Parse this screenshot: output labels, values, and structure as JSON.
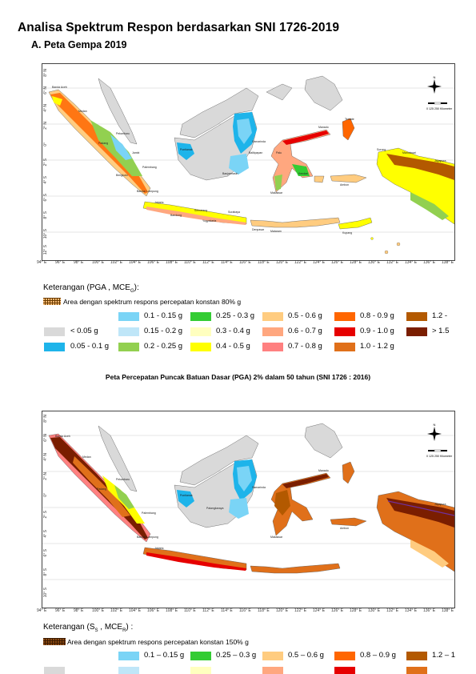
{
  "heading": "Analisa Spektrum Respon berdasarkan SNI 1726-2019",
  "subheading": "A. Peta Gempa 2019",
  "map1": {
    "lon_labels": [
      "94° E",
      "96° E",
      "98° E",
      "100° E",
      "102° E",
      "104° E",
      "106° E",
      "108° E",
      "110° E",
      "112° E",
      "114° E",
      "116° E",
      "118° E",
      "120° E",
      "122° E",
      "124° E",
      "126° E",
      "128° E",
      "130° E",
      "132° E",
      "134° E",
      "136° E",
      "138° E"
    ],
    "lat_labels": [
      "8° N",
      "6° N",
      "4° N",
      "2° N",
      "0°",
      "2° S",
      "4° S",
      "6° S",
      "8° S",
      "10° S",
      "12° S"
    ],
    "cities": [
      "Banda Aceh",
      "Medan",
      "Padang",
      "Pekanbaru",
      "Jambi",
      "Palembang",
      "Bengkulu",
      "Bandar Lampung",
      "Jakarta",
      "Bandung",
      "Semarang",
      "Yogyakarta",
      "Surabaya",
      "Denpasar",
      "Mataram",
      "Kupang",
      "Pontianak",
      "Samarinda",
      "Balikpapan",
      "Banjarmasin",
      "Palu",
      "Makassar",
      "Kendari",
      "Manado",
      "Ternate",
      "Ambon",
      "Sorong",
      "Jayapura",
      "Manokwari"
    ],
    "scale_text": "0 125 250 Kilometer",
    "legend": {
      "title": "Keterangan (PGA , MCE",
      "title_sub": "G",
      "title_end": "):",
      "hatch_label": "Area dengan spektrum respons percepatan konstan 80% g",
      "items": [
        {
          "label": "< 0.05 g",
          "color": "#d9d9d9"
        },
        {
          "label": "0.05 - 0.1 g",
          "color": "#1eb4ea"
        },
        {
          "label": "0.1 - 0.15 g",
          "color": "#7ad4f6"
        },
        {
          "label": "0.15 - 0.2 g",
          "color": "#bfe6f8"
        },
        {
          "label": "0.2 - 0.25 g",
          "color": "#92d050"
        },
        {
          "label": "0.25 - 0.3 g",
          "color": "#33cc33"
        },
        {
          "label": "0.3 - 0.4 g",
          "color": "#ffffbf"
        },
        {
          "label": "0.4 - 0.5 g",
          "color": "#ffff00"
        },
        {
          "label": "0.5 - 0.6 g",
          "color": "#ffcc80"
        },
        {
          "label": "0.6 - 0.7 g",
          "color": "#ffa77f"
        },
        {
          "label": "0.7 - 0.8 g",
          "color": "#ff8080"
        },
        {
          "label": "0.8 - 0.9 g",
          "color": "#ff6600"
        },
        {
          "label": "0.9 - 1.0 g",
          "color": "#e60000"
        },
        {
          "label": "1.0 - 1.2 g",
          "color": "#e0701a"
        },
        {
          "label": "1.2 - ",
          "color": "#b35900"
        },
        {
          "label": "> 1.5",
          "color": "#7a1e00"
        }
      ]
    }
  },
  "caption": "Peta Percepatan Puncak Batuan Dasar (PGA) 2% dalam 50 tahun  (SNI 1726 : 2016)",
  "map2": {
    "lon_labels": [
      "94° E",
      "96° E",
      "98° E",
      "100° E",
      "102° E",
      "104° E",
      "106° E",
      "108° E",
      "110° E",
      "112° E",
      "114° E",
      "116° E",
      "118° E",
      "120° E",
      "122° E",
      "124° E",
      "126° E",
      "128° E",
      "130° E",
      "132° E",
      "134° E",
      "136° E",
      "138° E"
    ],
    "lat_labels": [
      "8° N",
      "6° N",
      "4° N",
      "2° N",
      "0°",
      "2° S",
      "4° S",
      "6° S",
      "8° S",
      "10° S"
    ],
    "cities": [
      "Banda Aceh",
      "Medan",
      "Padang",
      "Pekanbaru",
      "Palembang",
      "Bandar Lampung",
      "Jakarta",
      "Pontianak",
      "Palangkaraya",
      "Samarinda",
      "Manado",
      "Makassar",
      "Ambon",
      "Jayapura"
    ],
    "scale_text": "0 125 250 Kilometer",
    "legend": {
      "title": "Keterangan (S",
      "title_sub": "S",
      "title_end": " , MCE",
      "title_sub2": "R",
      "title_end2": ") :",
      "hatch_label": "Area dengan spektrum respons percepatan konstan 150% g",
      "items": [
        {
          "label": "0.1 – 0.15 g",
          "color": "#7ad4f6"
        },
        {
          "label": "0.25 – 0.3 g",
          "color": "#33cc33"
        },
        {
          "label": "0.5 – 0.6 g",
          "color": "#ffcc80"
        },
        {
          "label": "0.8 – 0.9 g",
          "color": "#ff6600"
        },
        {
          "label": "1.2 – 1",
          "color": "#b35900"
        }
      ]
    }
  },
  "colors": {
    "land_grey": "#d9d9d9",
    "sea": "#ffffff",
    "border": "#444444"
  }
}
